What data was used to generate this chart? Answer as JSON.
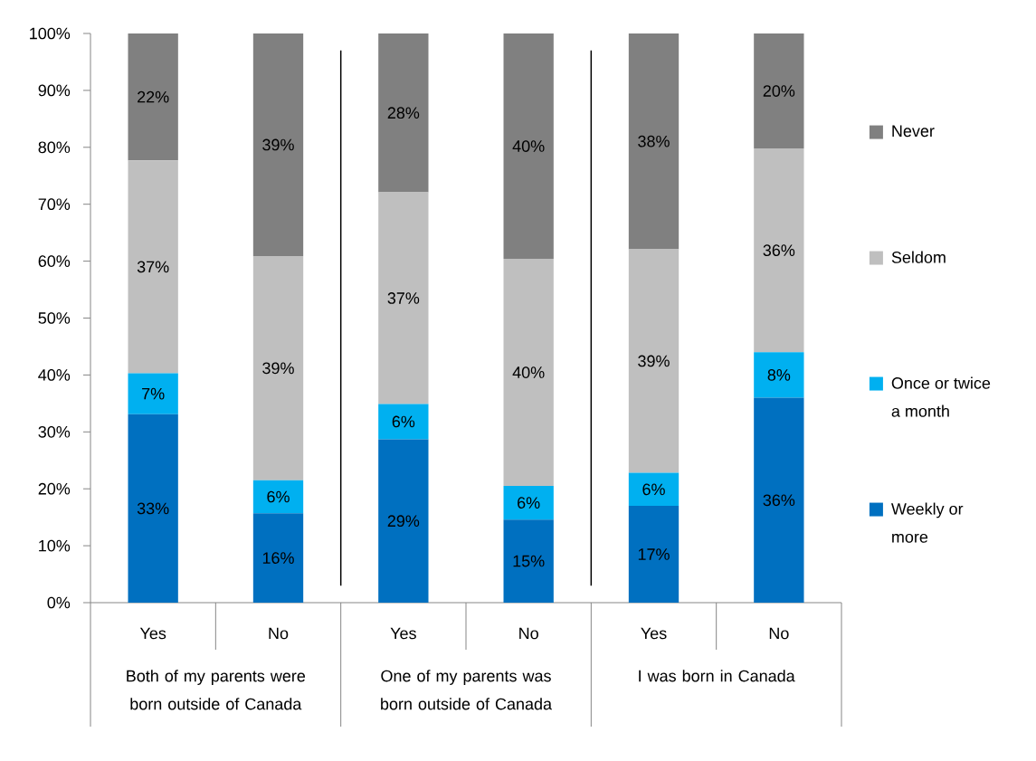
{
  "chart_data": {
    "type": "bar",
    "stacked": true,
    "categories": [
      "Yes",
      "No",
      "Yes",
      "No",
      "Yes",
      "No"
    ],
    "series": [
      {
        "name": "Weekly or more",
        "color": "#0070c0",
        "values": [
          33.1,
          15.7,
          28.7,
          14.6,
          17.0,
          36.0
        ],
        "value_labels": [
          "33%",
          "16%",
          "29%",
          "15%",
          "17%",
          "36%"
        ]
      },
      {
        "name": "Once or twice a month",
        "color": "#00b0f0",
        "values": [
          7.2,
          5.8,
          6.2,
          5.9,
          5.8,
          8.0
        ],
        "value_labels": [
          "7%",
          "6%",
          "6%",
          "6%",
          "6%",
          "8%"
        ]
      },
      {
        "name": "Seldom",
        "color": "#bfbfbf",
        "values": [
          37.4,
          39.4,
          37.2,
          39.9,
          39.3,
          35.8
        ],
        "value_labels": [
          "37%",
          "39%",
          "37%",
          "40%",
          "39%",
          "36%"
        ]
      },
      {
        "name": "Never",
        "color": "#808080",
        "values": [
          22.3,
          39.1,
          27.9,
          39.6,
          37.9,
          20.2
        ],
        "value_labels": [
          "22%",
          "39%",
          "28%",
          "40%",
          "38%",
          "20%"
        ]
      }
    ],
    "ylim": [
      0,
      100
    ],
    "yticks": [
      {
        "value": 0,
        "label": "0%"
      },
      {
        "value": 10,
        "label": "10%"
      },
      {
        "value": 20,
        "label": "20%"
      },
      {
        "value": 30,
        "label": "30%"
      },
      {
        "value": 40,
        "label": "40%"
      },
      {
        "value": 50,
        "label": "50%"
      },
      {
        "value": 60,
        "label": "60%"
      },
      {
        "value": 70,
        "label": "70%"
      },
      {
        "value": 80,
        "label": "80%"
      },
      {
        "value": 90,
        "label": "90%"
      },
      {
        "value": 100,
        "label": "100%"
      }
    ],
    "legend": "right",
    "annotations": [
      "Both of my parents were born outside of Canada",
      "One of my parents was born outside of Canada",
      "I was born in Canada"
    ]
  }
}
